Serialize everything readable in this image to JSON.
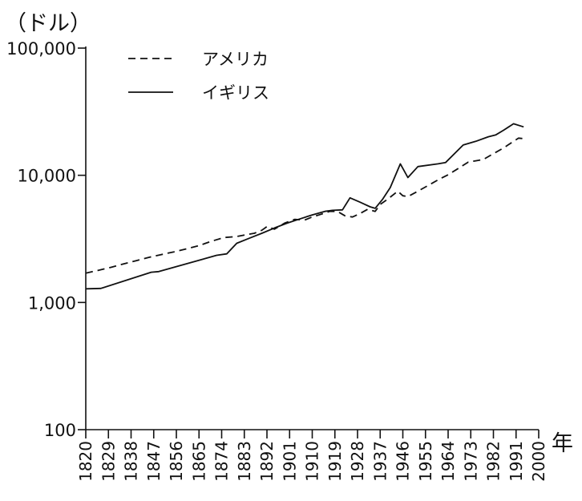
{
  "chart_data": {
    "type": "line",
    "ylabel": "（ドル）",
    "xlabel": "年",
    "y_scale": "log",
    "ylim": [
      100,
      100000
    ],
    "yticks": [
      100,
      1000,
      10000,
      100000
    ],
    "ytick_labels": [
      "100",
      "1,000",
      "10,000",
      "100,000"
    ],
    "xlim": [
      1820,
      2000
    ],
    "xticks": [
      1820,
      1829,
      1838,
      1847,
      1856,
      1865,
      1874,
      1883,
      1892,
      1901,
      1910,
      1919,
      1928,
      1937,
      1946,
      1955,
      1964,
      1973,
      1982,
      1991,
      2000
    ],
    "legend_position": "top-left",
    "series": [
      {
        "name": "アメリカ",
        "style": "dashed",
        "color": "#111111",
        "points": [
          [
            1820,
            1700
          ],
          [
            1825,
            1790
          ],
          [
            1830,
            1890
          ],
          [
            1835,
            2010
          ],
          [
            1840,
            2130
          ],
          [
            1845,
            2260
          ],
          [
            1850,
            2380
          ],
          [
            1855,
            2500
          ],
          [
            1860,
            2640
          ],
          [
            1865,
            2800
          ],
          [
            1870,
            3030
          ],
          [
            1875,
            3240
          ],
          [
            1880,
            3300
          ],
          [
            1883,
            3390
          ],
          [
            1887,
            3500
          ],
          [
            1890,
            3700
          ],
          [
            1892,
            3950
          ],
          [
            1895,
            3770
          ],
          [
            1899,
            4200
          ],
          [
            1903,
            4500
          ],
          [
            1907,
            4450
          ],
          [
            1910,
            4700
          ],
          [
            1913,
            4900
          ],
          [
            1917,
            5200
          ],
          [
            1920,
            5200
          ],
          [
            1923,
            4800
          ],
          [
            1926,
            4700
          ],
          [
            1929,
            5000
          ],
          [
            1932,
            5400
          ],
          [
            1935,
            5200
          ],
          [
            1937,
            5900
          ],
          [
            1940,
            6500
          ],
          [
            1944,
            7500
          ],
          [
            1946,
            6900
          ],
          [
            1948,
            6800
          ],
          [
            1952,
            7500
          ],
          [
            1956,
            8300
          ],
          [
            1960,
            9200
          ],
          [
            1964,
            10100
          ],
          [
            1968,
            11300
          ],
          [
            1972,
            12700
          ],
          [
            1975,
            13000
          ],
          [
            1978,
            13300
          ],
          [
            1982,
            14800
          ],
          [
            1986,
            16400
          ],
          [
            1990,
            18500
          ],
          [
            1992,
            19600
          ],
          [
            1994,
            19400
          ]
        ]
      },
      {
        "name": "イギリス",
        "style": "solid",
        "color": "#111111",
        "points": [
          [
            1820,
            1280
          ],
          [
            1826,
            1290
          ],
          [
            1846,
            1730
          ],
          [
            1849,
            1750
          ],
          [
            1872,
            2350
          ],
          [
            1876,
            2410
          ],
          [
            1880,
            2920
          ],
          [
            1885,
            3200
          ],
          [
            1890,
            3500
          ],
          [
            1895,
            3850
          ],
          [
            1900,
            4200
          ],
          [
            1905,
            4530
          ],
          [
            1910,
            4880
          ],
          [
            1915,
            5200
          ],
          [
            1918,
            5300
          ],
          [
            1922,
            5350
          ],
          [
            1925,
            6650
          ],
          [
            1929,
            6150
          ],
          [
            1933,
            5650
          ],
          [
            1935,
            5500
          ],
          [
            1938,
            6500
          ],
          [
            1941,
            8000
          ],
          [
            1945,
            12300
          ],
          [
            1948,
            9600
          ],
          [
            1952,
            11700
          ],
          [
            1960,
            12300
          ],
          [
            1963,
            12600
          ],
          [
            1970,
            17300
          ],
          [
            1975,
            18500
          ],
          [
            1980,
            20100
          ],
          [
            1983,
            20800
          ],
          [
            1986,
            22600
          ],
          [
            1990,
            25400
          ],
          [
            1994,
            24000
          ]
        ]
      }
    ]
  }
}
